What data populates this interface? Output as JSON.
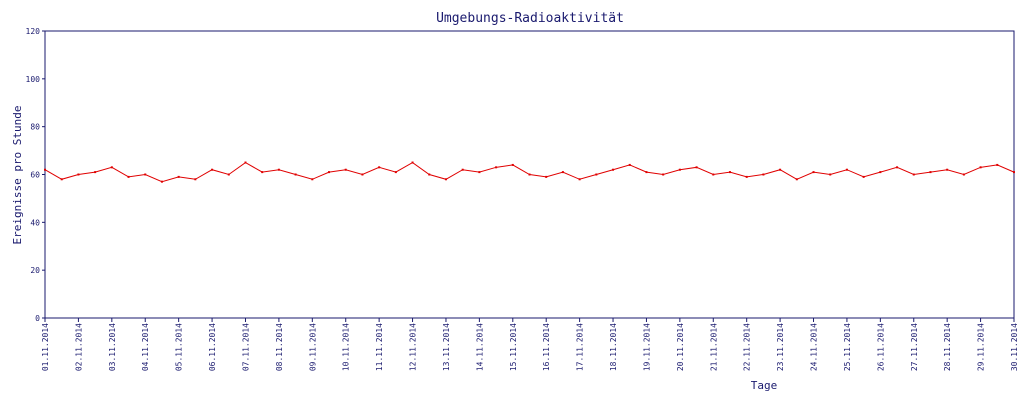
{
  "chart_data": {
    "type": "line",
    "title": "Umgebungs-Radioaktivität",
    "xlabel": "Tage",
    "ylabel": "Ereignisse pro Stunde",
    "ylim": [
      0,
      120
    ],
    "yticks": [
      0,
      20,
      40,
      60,
      80,
      100,
      120
    ],
    "xlim": [
      "2014-11-01",
      "2014-11-30"
    ],
    "x_tick_labels": [
      "01.11.2014",
      "02.11.2014",
      "03.11.2014",
      "04.11.2014",
      "05.11.2014",
      "06.11.2014",
      "07.11.2014",
      "08.11.2014",
      "09.11.2014",
      "10.11.2014",
      "11.11.2014",
      "12.11.2014",
      "13.11.2014",
      "14.11.2014",
      "15.11.2014",
      "16.11.2014",
      "17.11.2014",
      "18.11.2014",
      "19.11.2014",
      "20.11.2014",
      "21.11.2014",
      "22.11.2014",
      "23.11.2014",
      "24.11.2014",
      "25.11.2014",
      "26.11.2014",
      "27.11.2014",
      "28.11.2014",
      "29.11.2014",
      "30.11.2014"
    ],
    "grid": false,
    "line_color": "#e00000",
    "axis_color": "#1a1a6e",
    "series": [
      {
        "x": [
          "01.11.2014",
          "01.11.2014 12:00",
          "02.11.2014",
          "02.11.2014 12:00",
          "03.11.2014",
          "03.11.2014 12:00",
          "04.11.2014",
          "04.11.2014 12:00",
          "05.11.2014",
          "05.11.2014 12:00",
          "06.11.2014",
          "06.11.2014 12:00",
          "07.11.2014",
          "07.11.2014 12:00",
          "08.11.2014",
          "08.11.2014 12:00",
          "09.11.2014",
          "09.11.2014 12:00",
          "10.11.2014",
          "10.11.2014 12:00",
          "11.11.2014",
          "11.11.2014 12:00",
          "12.11.2014",
          "12.11.2014 12:00",
          "13.11.2014",
          "13.11.2014 12:00",
          "14.11.2014",
          "14.11.2014 12:00",
          "15.11.2014",
          "15.11.2014 12:00",
          "16.11.2014",
          "16.11.2014 12:00",
          "17.11.2014",
          "17.11.2014 12:00",
          "18.11.2014",
          "18.11.2014 12:00",
          "19.11.2014",
          "19.11.2014 12:00",
          "20.11.2014",
          "20.11.2014 12:00",
          "21.11.2014",
          "21.11.2014 12:00",
          "22.11.2014",
          "22.11.2014 12:00",
          "23.11.2014",
          "23.11.2014 12:00",
          "24.11.2014",
          "24.11.2014 12:00",
          "25.11.2014",
          "25.11.2014 12:00",
          "26.11.2014",
          "26.11.2014 12:00",
          "27.11.2014",
          "27.11.2014 12:00",
          "28.11.2014",
          "28.11.2014 12:00",
          "29.11.2014",
          "29.11.2014 12:00",
          "30.11.2014"
        ],
        "values": [
          62,
          58,
          60,
          61,
          63,
          59,
          60,
          57,
          59,
          58,
          62,
          60,
          65,
          61,
          62,
          60,
          58,
          61,
          62,
          60,
          63,
          61,
          65,
          60,
          58,
          62,
          61,
          63,
          64,
          60,
          59,
          61,
          58,
          60,
          62,
          64,
          61,
          60,
          62,
          63,
          60,
          61,
          59,
          60,
          62,
          58,
          61,
          60,
          62,
          59,
          61,
          63,
          60,
          61,
          62,
          60,
          63,
          64,
          61
        ]
      }
    ]
  }
}
